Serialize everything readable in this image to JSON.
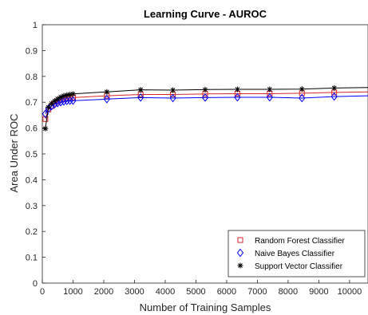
{
  "chart_data": {
    "type": "line",
    "title": "Learning Curve - AUROC",
    "xlabel": "Number of Training Samples",
    "ylabel": "Area Under ROC",
    "xlim": [
      0,
      10600
    ],
    "ylim": [
      0,
      1
    ],
    "xticks": [
      0,
      1000,
      2000,
      3000,
      4000,
      5000,
      6000,
      7000,
      8000,
      9000,
      10000
    ],
    "yticks": [
      0,
      0.1,
      0.2,
      0.3,
      0.4,
      0.5,
      0.6,
      0.7,
      0.8,
      0.9,
      1
    ],
    "xtick_labels": [
      "0",
      "1000",
      "2000",
      "3000",
      "4000",
      "5000",
      "6000",
      "7000",
      "8000",
      "9000",
      "10000"
    ],
    "ytick_labels": [
      "0",
      "0.1",
      "0.2",
      "0.3",
      "0.4",
      "0.5",
      "0.6",
      "0.7",
      "0.8",
      "0.9",
      "1"
    ],
    "grid": false,
    "legend_position": "bottom-right",
    "series": [
      {
        "name": "Random Forest Classifier",
        "color": "#d62728",
        "marker": "square",
        "x": [
          100,
          200,
          300,
          400,
          500,
          600,
          700,
          800,
          900,
          1000,
          2100,
          3200,
          4250,
          5300,
          6350,
          7400,
          8450,
          9500,
          10600
        ],
        "y": [
          0.635,
          0.672,
          0.685,
          0.695,
          0.702,
          0.708,
          0.712,
          0.715,
          0.717,
          0.718,
          0.725,
          0.73,
          0.73,
          0.732,
          0.733,
          0.733,
          0.735,
          0.738,
          0.74
        ]
      },
      {
        "name": "Naive Bayes Classifier",
        "color": "#0000ff",
        "marker": "diamond",
        "x": [
          100,
          200,
          300,
          400,
          500,
          600,
          700,
          800,
          900,
          1000,
          2100,
          3200,
          4250,
          5300,
          6350,
          7400,
          8450,
          9500,
          10600
        ],
        "y": [
          0.655,
          0.675,
          0.685,
          0.692,
          0.697,
          0.7,
          0.703,
          0.705,
          0.706,
          0.706,
          0.712,
          0.718,
          0.716,
          0.718,
          0.719,
          0.719,
          0.716,
          0.722,
          0.725
        ]
      },
      {
        "name": "Support Vector Classifier",
        "color": "#000000",
        "marker": "asterisk",
        "x": [
          100,
          200,
          300,
          400,
          500,
          600,
          700,
          800,
          900,
          1000,
          2100,
          3200,
          4250,
          5300,
          6350,
          7400,
          8450,
          9500,
          10600
        ],
        "y": [
          0.598,
          0.68,
          0.695,
          0.705,
          0.713,
          0.72,
          0.725,
          0.728,
          0.73,
          0.732,
          0.74,
          0.748,
          0.747,
          0.749,
          0.75,
          0.75,
          0.751,
          0.755,
          0.757
        ]
      }
    ]
  }
}
